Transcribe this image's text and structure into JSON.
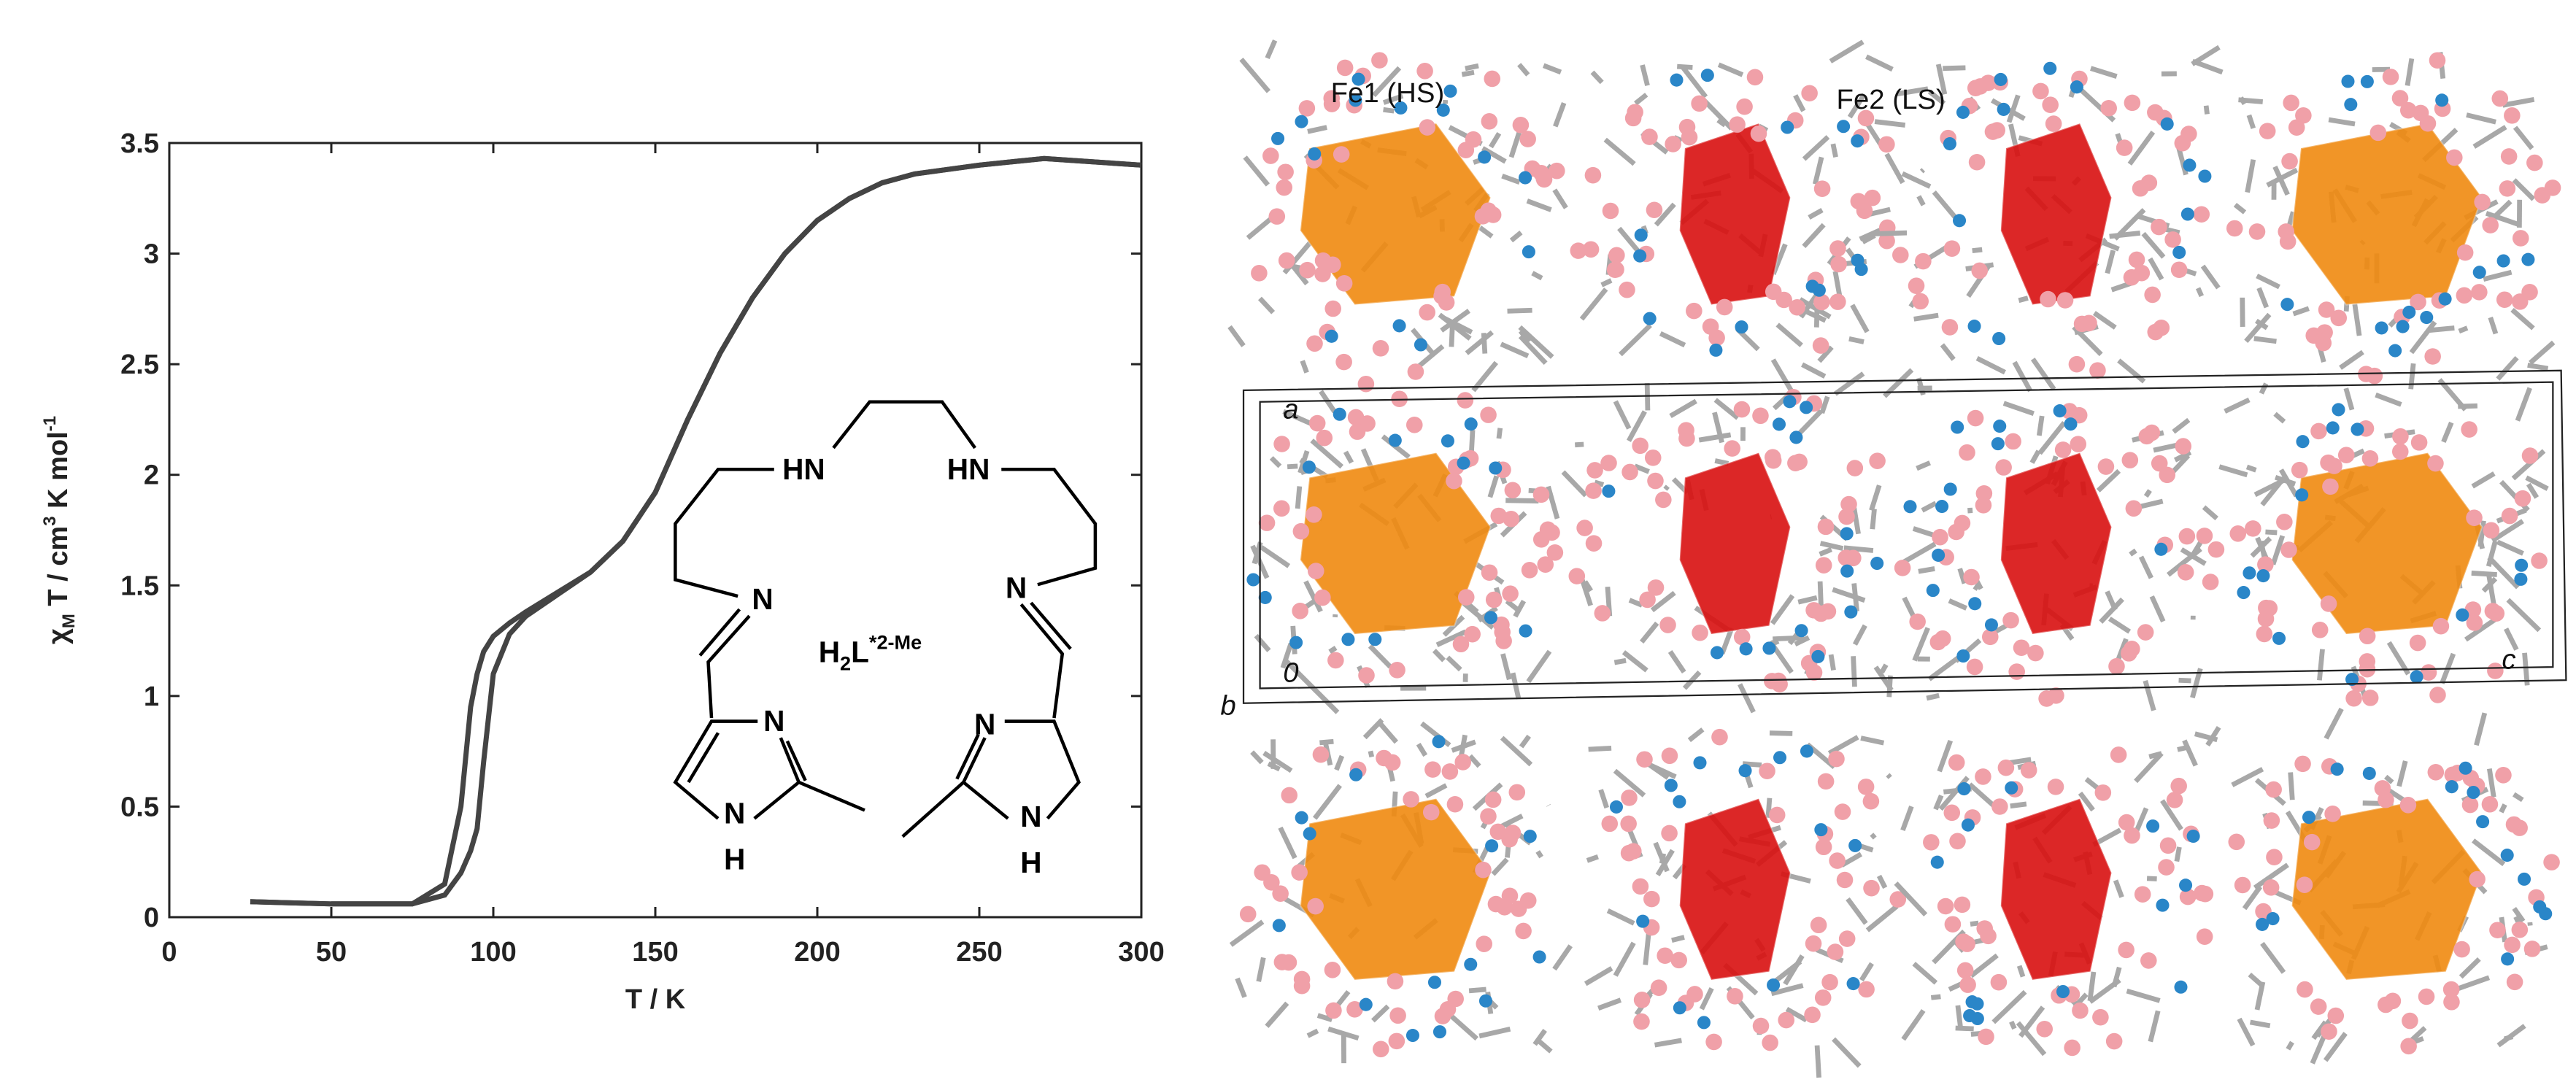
{
  "chart_data": {
    "type": "line",
    "xlabel": "T / K",
    "ylabel": [
      "χ",
      "M",
      " T / cm",
      "3",
      " K mol",
      "-1"
    ],
    "x": [
      25,
      50,
      75,
      85,
      90,
      93,
      95,
      97,
      100,
      105,
      110,
      120,
      130,
      140,
      150,
      160,
      170,
      180,
      190,
      200,
      210,
      220,
      230,
      250,
      270,
      300
    ],
    "series": [
      {
        "color": "#444444",
        "values": [
          0.07,
          0.06,
          0.06,
          0.15,
          0.5,
          0.95,
          1.1,
          1.2,
          1.27,
          1.33,
          1.38,
          1.47,
          1.56,
          1.7,
          1.92,
          2.25,
          2.55,
          2.8,
          3.0,
          3.15,
          3.25,
          3.32,
          3.36,
          3.4,
          3.43,
          3.4
        ]
      },
      {
        "color": "#444444",
        "values": [
          0.07,
          0.06,
          0.06,
          0.1,
          0.2,
          0.3,
          0.4,
          0.7,
          1.1,
          1.28,
          1.36,
          1.46,
          1.56,
          1.7,
          1.92,
          2.25,
          2.55,
          2.8,
          3.0,
          3.15,
          3.25,
          3.32,
          3.36,
          3.4,
          3.43,
          3.4
        ]
      }
    ],
    "xlim": [
      0,
      300
    ],
    "xticks": [
      0,
      50,
      100,
      150,
      200,
      250,
      300
    ],
    "ylim": [
      0,
      3.5
    ],
    "yticks": [
      0,
      0.5,
      1,
      1.5,
      2,
      2.5,
      3,
      3.5
    ]
  },
  "structure": {
    "amines": [
      "HN",
      "HN"
    ],
    "imines": [
      "N",
      "N"
    ],
    "ring_n": [
      "N",
      "N",
      "N",
      "N"
    ],
    "ring_h": [
      "H",
      "H"
    ],
    "name": [
      "H",
      "2",
      "L",
      "*2-Me"
    ]
  },
  "crystal": {
    "sites": [
      "Fe1 (HS)",
      "Fe2 (LS)"
    ],
    "axes": [
      "a",
      "b",
      "c",
      "0"
    ]
  }
}
